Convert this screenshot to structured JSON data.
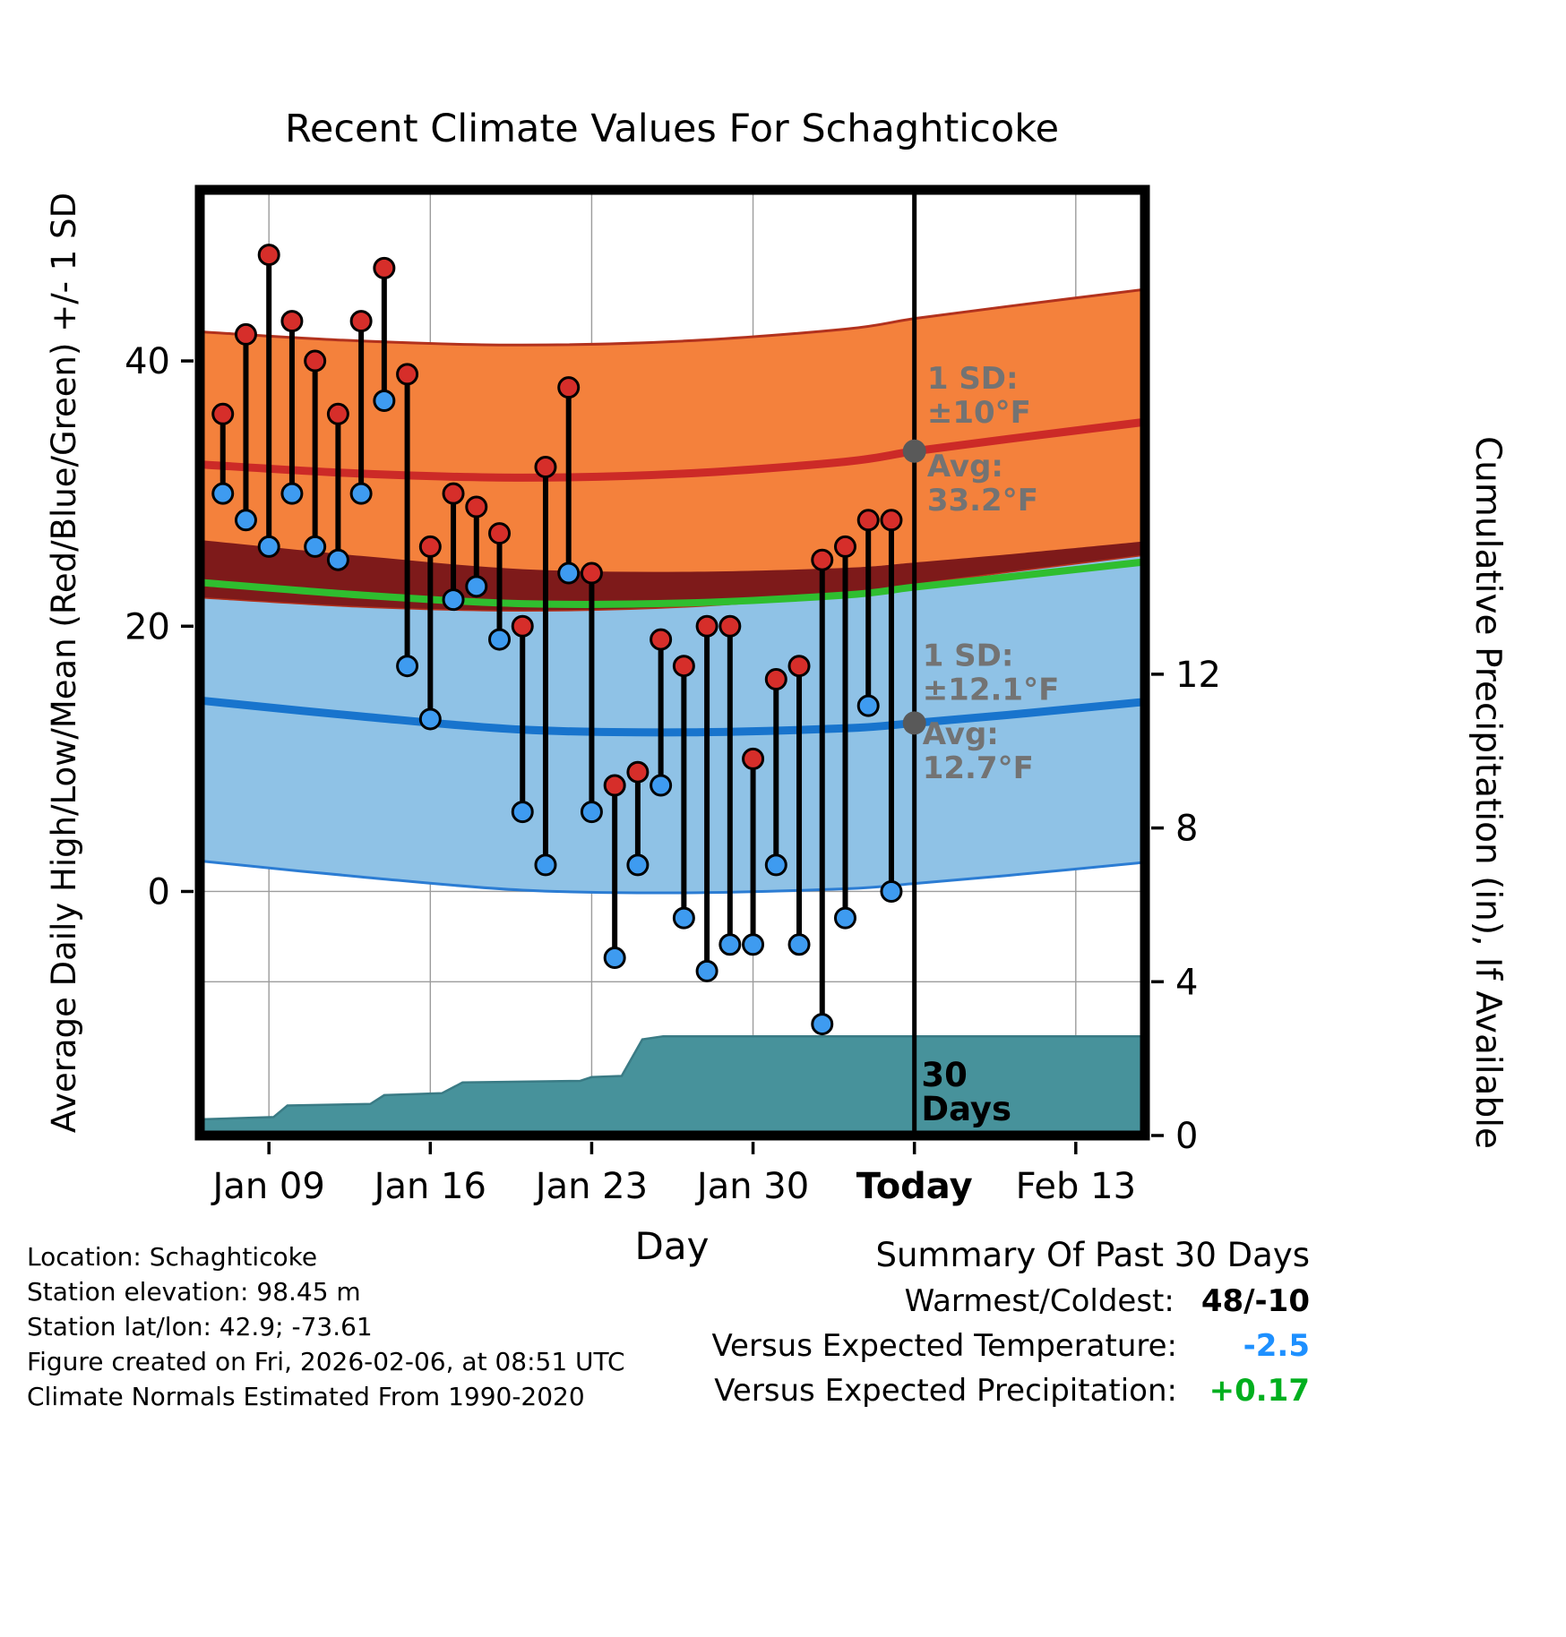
{
  "title": "Recent Climate Values For Schaghticoke",
  "station_info": {
    "lines": [
      "Location: Schaghticoke",
      "Station elevation: 98.45 m",
      "Station lat/lon: 42.9; -73.61",
      "Figure created on Fri, 2026-02-06, at 08:51 UTC",
      "Climate Normals Estimated From 1990-2020"
    ]
  },
  "summary": {
    "title": "Summary Of Past 30 Days",
    "rows": [
      {
        "label": "Warmest/Coldest:",
        "value": "48/-10",
        "color": "#000000"
      },
      {
        "label": "Versus Expected Temperature:",
        "value": "-2.5",
        "color": "#1E90FF"
      },
      {
        "label": "Versus Expected Precipitation:",
        "value": "+0.17",
        "color": "#00AF1E"
      }
    ]
  },
  "colors": {
    "orange": "#F4813C",
    "orange_edge": "#B2321E",
    "red_line": "#CC2A27",
    "maroon": "#7E1A1A",
    "green": "#2FBE2F",
    "light_blue": "#8FC2E6",
    "blue_edge": "#2B7CD3",
    "blue_line": "#1874CD",
    "dot_red": "#D62E2A",
    "dot_blue": "#3E9BF0",
    "teal": "#47929B",
    "teal_edge": "#3A7B85",
    "gray_text": "#737373",
    "grid": "#9C9C9C"
  },
  "chart_data": {
    "type": "line",
    "title": "Recent Climate Values For Schaghticoke",
    "xlabel": "Day",
    "ylabel_left": "Average Daily High/Low/Mean (Red/Blue/Green) +/- 1 SD",
    "ylabel_right": "Cumulative Precipitation (in), If Available",
    "x_axis": {
      "min": 0,
      "max": 41,
      "ticks": [
        {
          "day": 3,
          "label": "Jan 09",
          "bold": false
        },
        {
          "day": 10,
          "label": "Jan 16",
          "bold": false
        },
        {
          "day": 17,
          "label": "Jan 23",
          "bold": false
        },
        {
          "day": 24,
          "label": "Jan 30",
          "bold": false
        },
        {
          "day": 31,
          "label": "Today",
          "bold": true
        },
        {
          "day": 38,
          "label": "Feb 13",
          "bold": false
        }
      ]
    },
    "y_left": {
      "min": -18.4,
      "max": 52.9,
      "ticks": [
        0,
        20,
        40
      ]
    },
    "y_right": {
      "min": 0,
      "max": 24.6,
      "ticks": [
        0,
        4,
        8,
        12
      ]
    },
    "normals": {
      "high_sd": 10,
      "low_sd": 12.1,
      "points": [
        {
          "day": 0,
          "high": 32.2,
          "low": 14.4
        },
        {
          "day": 7,
          "high": 31.5,
          "low": 13.2
        },
        {
          "day": 14,
          "high": 31.2,
          "low": 12.2
        },
        {
          "day": 21,
          "high": 31.5,
          "low": 12.0
        },
        {
          "day": 28,
          "high": 32.4,
          "low": 12.3
        },
        {
          "day": 31,
          "high": 33.2,
          "low": 12.7
        },
        {
          "day": 35,
          "high": 34.1,
          "low": 13.3
        },
        {
          "day": 41,
          "high": 35.4,
          "low": 14.3
        }
      ]
    },
    "daily": {
      "days": [
        1,
        2,
        3,
        4,
        5,
        6,
        7,
        8,
        9,
        10,
        11,
        12,
        13,
        14,
        15,
        16,
        17,
        18,
        19,
        20,
        21,
        22,
        23,
        24,
        25,
        26,
        27,
        28,
        29,
        30
      ],
      "high": [
        36,
        42,
        48,
        43,
        40,
        36,
        43,
        47,
        39,
        26,
        30,
        29,
        27,
        20,
        32,
        38,
        24,
        8,
        9,
        19,
        17,
        20,
        20,
        10,
        16,
        17,
        25,
        26,
        28,
        28
      ],
      "low": [
        30,
        28,
        26,
        30,
        26,
        25,
        30,
        37,
        17,
        13,
        22,
        23,
        19,
        6,
        2,
        24,
        6,
        -5,
        2,
        8,
        -2,
        -6,
        -4,
        -4,
        2,
        -4,
        -10,
        -2,
        14,
        0
      ]
    },
    "precip_cumulative": [
      [
        0,
        0.42
      ],
      [
        3.2,
        0.48
      ],
      [
        3.8,
        0.78
      ],
      [
        7.4,
        0.82
      ],
      [
        8.0,
        1.05
      ],
      [
        10.5,
        1.1
      ],
      [
        11.4,
        1.38
      ],
      [
        16.5,
        1.42
      ],
      [
        17.0,
        1.52
      ],
      [
        18.3,
        1.55
      ],
      [
        19.2,
        2.5
      ],
      [
        20.1,
        2.58
      ],
      [
        41,
        2.58
      ]
    ],
    "today_line_day": 31,
    "today_markers": [
      {
        "day": 31,
        "value": 33.2
      },
      {
        "day": 31,
        "value": 12.7
      }
    ],
    "annotations": [
      {
        "name": "high-sd-annotation",
        "day": 31.55,
        "value": 37.9,
        "lines": [
          "1 SD:",
          "±10°F"
        ],
        "color": "#737373",
        "size": 34
      },
      {
        "name": "high-avg-annotation",
        "day": 31.55,
        "value": 31.3,
        "lines": [
          "Avg:",
          "33.2°F"
        ],
        "color": "#737373",
        "size": 34
      },
      {
        "name": "low-sd-annotation",
        "day": 31.35,
        "value": 17.0,
        "lines": [
          "1 SD:",
          "±12.1°F"
        ],
        "color": "#737373",
        "size": 34
      },
      {
        "name": "low-avg-annotation",
        "day": 31.35,
        "value": 11.1,
        "lines": [
          "Avg:",
          "12.7°F"
        ],
        "color": "#737373",
        "size": 34
      },
      {
        "name": "days-span-annotation",
        "day": 31.3,
        "value": -14.7,
        "lines": [
          "30",
          "Days"
        ],
        "color": "#000000",
        "size": 37
      }
    ],
    "legend": "none",
    "grid": true
  }
}
